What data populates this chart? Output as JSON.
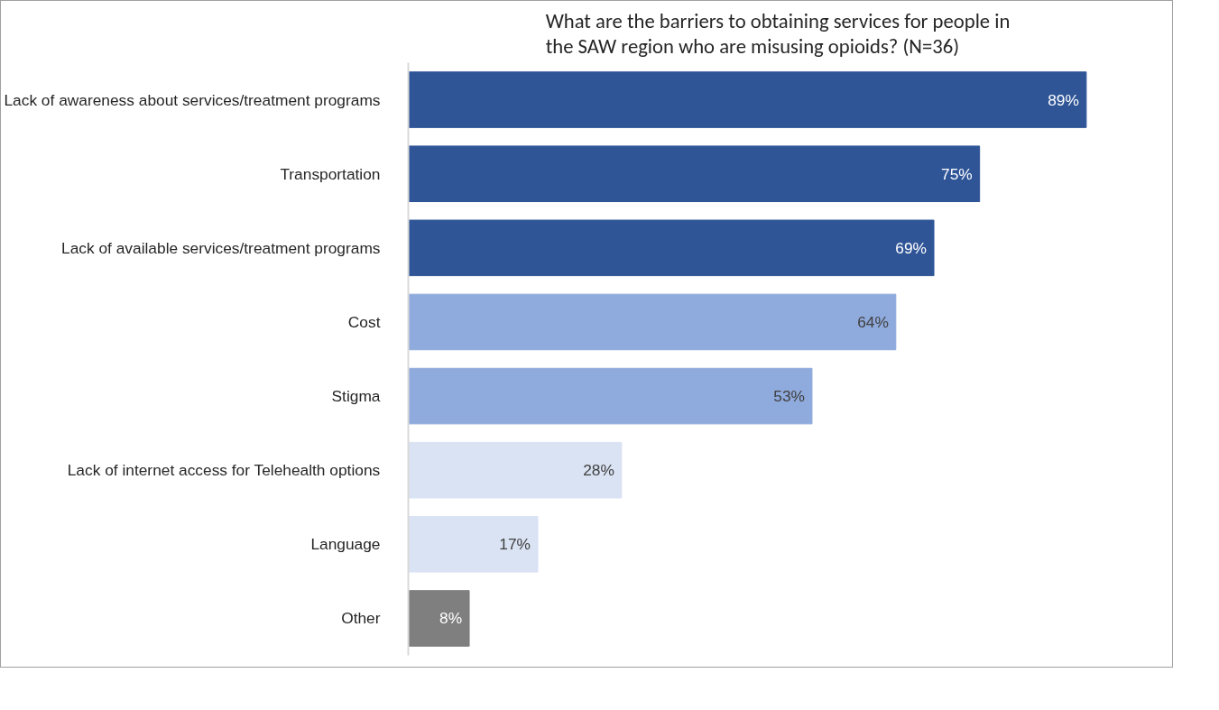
{
  "chart_data": {
    "type": "bar",
    "orientation": "horizontal",
    "title": "What are the barriers to obtaining services for people in\nthe SAW region who are misusing opioids? (N=36)",
    "categories": [
      "Lack of awareness about services/treatment programs",
      "Transportation",
      "Lack of available services/treatment programs",
      "Cost",
      "Stigma",
      "Lack of internet access for Telehealth options",
      "Language",
      "Other"
    ],
    "values": [
      89,
      75,
      69,
      64,
      53,
      28,
      17,
      8
    ],
    "value_labels": [
      "89%",
      "75%",
      "69%",
      "64%",
      "53%",
      "28%",
      "17%",
      "8%"
    ],
    "colors": [
      "#2f5597",
      "#2f5597",
      "#2f5597",
      "#8faadc",
      "#8faadc",
      "#dae3f3",
      "#dae3f3",
      "#7f7f7f"
    ],
    "tick_labels": "y",
    "grid": false
  }
}
